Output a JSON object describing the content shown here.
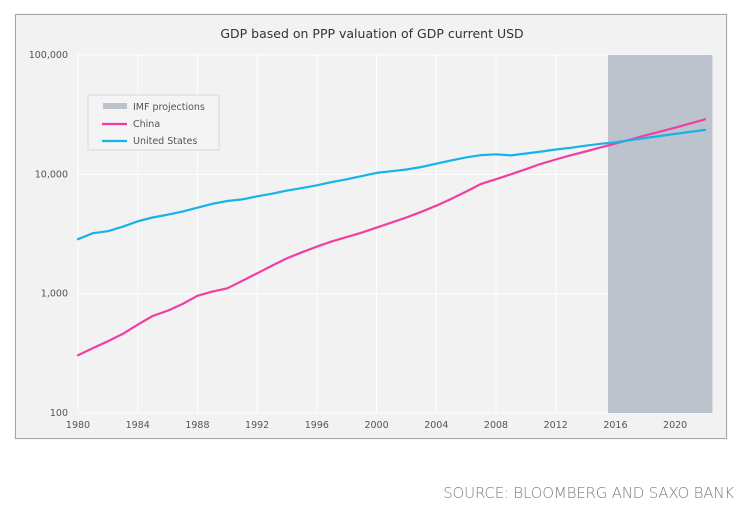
{
  "chart_data": {
    "type": "line",
    "title": "GDP based on PPP valuation of GDP current USD",
    "xlabel": "",
    "ylabel": "",
    "yscale": "log",
    "ylim": [
      100,
      100000
    ],
    "xlim": [
      1980,
      2022
    ],
    "grid": true,
    "x_ticks": [
      "1980",
      "1984",
      "1988",
      "1992",
      "1996",
      "2000",
      "2004",
      "2008",
      "2012",
      "2016",
      "2020"
    ],
    "y_ticks": [
      "100",
      "1,000",
      "10,000",
      "100,000"
    ],
    "y_tick_values": [
      100,
      1000,
      10000,
      100000
    ],
    "legend_position": "top-left",
    "projection_band": {
      "name": "IMF projections",
      "from": 2015.5,
      "to": 2022.5,
      "color": "#bcc3cc"
    },
    "x": [
      1980,
      1981,
      1982,
      1983,
      1984,
      1985,
      1986,
      1987,
      1988,
      1989,
      1990,
      1991,
      1992,
      1993,
      1994,
      1995,
      1996,
      1997,
      1998,
      1999,
      2000,
      2001,
      2002,
      2003,
      2004,
      2005,
      2006,
      2007,
      2008,
      2009,
      2010,
      2011,
      2012,
      2013,
      2014,
      2015,
      2016,
      2017,
      2018,
      2019,
      2020,
      2021,
      2022
    ],
    "series": [
      {
        "name": "China",
        "color": "#f23ea3",
        "values": [
          305,
          350,
          400,
          460,
          550,
          650,
          720,
          820,
          960,
          1040,
          1110,
          1280,
          1480,
          1720,
          1980,
          2220,
          2480,
          2740,
          2980,
          3240,
          3580,
          3940,
          4350,
          4850,
          5460,
          6220,
          7160,
          8310,
          9110,
          10000,
          11050,
          12220,
          13310,
          14440,
          15550,
          16800,
          18100,
          19600,
          21200,
          22800,
          24600,
          26600,
          28900
        ]
      },
      {
        "name": "United States",
        "color": "#15b3e8",
        "values": [
          2860,
          3210,
          3340,
          3640,
          4040,
          4350,
          4590,
          4870,
          5250,
          5660,
          5980,
          6170,
          6540,
          6880,
          7310,
          7660,
          8100,
          8610,
          9090,
          9660,
          10290,
          10620,
          10980,
          11510,
          12270,
          13090,
          13860,
          14480,
          14720,
          14420,
          14960,
          15520,
          16160,
          16690,
          17390,
          18040,
          18570,
          19360,
          20140,
          20960,
          21800,
          22680,
          23590
        ]
      }
    ]
  },
  "source": "SOURCE: BLOOMBERG AND SAXO BANK"
}
